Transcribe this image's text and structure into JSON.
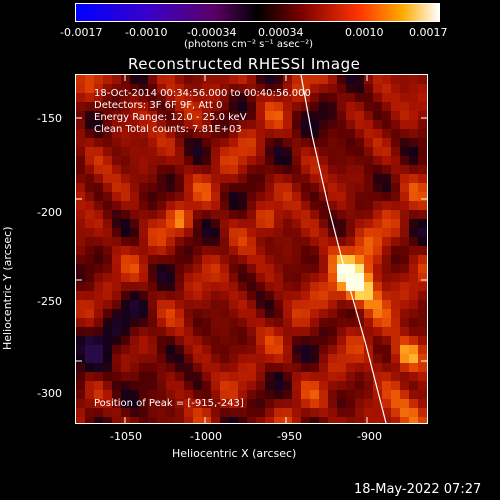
{
  "colorbar": {
    "tick_labels": [
      "-0.0017",
      "-0.0010",
      "-0.00034",
      "0.00034",
      "0.0010",
      "0.0017"
    ],
    "unit_label": "(photons cm⁻² s⁻¹ asec⁻²)"
  },
  "plot": {
    "title": "Reconstructed RHESSI Image",
    "info_lines": [
      "18-Oct-2014 00:34:56.000 to 00:40:56.000",
      "Detectors: 3F 6F 9F, Att 0",
      "Energy Range: 12.0 - 25.0 keV",
      "Clean     Total counts: 7.81E+03"
    ],
    "peak_text": "Position of Peak = [-915,-243]",
    "xlabel": "Heliocentric X (arcsec)",
    "ylabel": "Heliocentric Y (arcsec)",
    "x_ticks": [
      "-1050",
      "-1000",
      "-950",
      "-900"
    ],
    "y_ticks": [
      "-150",
      "-200",
      "-250",
      "-300"
    ]
  },
  "footer": {
    "timestamp": "18-May-2022 07:27"
  },
  "colors": {
    "background": "#000000",
    "text": "#ffffff"
  }
}
